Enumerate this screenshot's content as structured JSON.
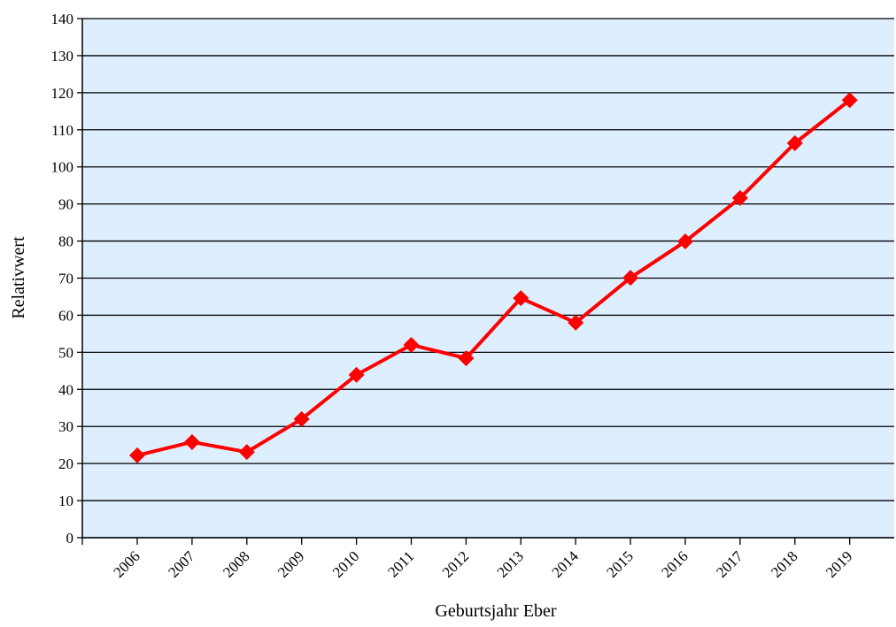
{
  "chart_data": {
    "type": "line",
    "x_label": "Geburtsjahr Eber",
    "y_label": "Relativwert",
    "categories": [
      "2006",
      "2007",
      "2008",
      "2009",
      "2010",
      "2011",
      "2012",
      "2013",
      "2014",
      "2015",
      "2016",
      "2017",
      "2018",
      "2019"
    ],
    "series": [
      {
        "color": "#ff0000",
        "values": [
          22.2,
          25.8,
          23.1,
          32,
          43.9,
          52,
          48.4,
          64.6,
          58,
          70.1,
          79.9,
          91.6,
          106.4,
          118
        ]
      }
    ],
    "ylim": [
      0,
      140
    ],
    "yticks": [
      0,
      10,
      20,
      30,
      40,
      50,
      60,
      70,
      80,
      90,
      100,
      110,
      120,
      130,
      140
    ],
    "grid": true,
    "background": "#ddeeff"
  }
}
